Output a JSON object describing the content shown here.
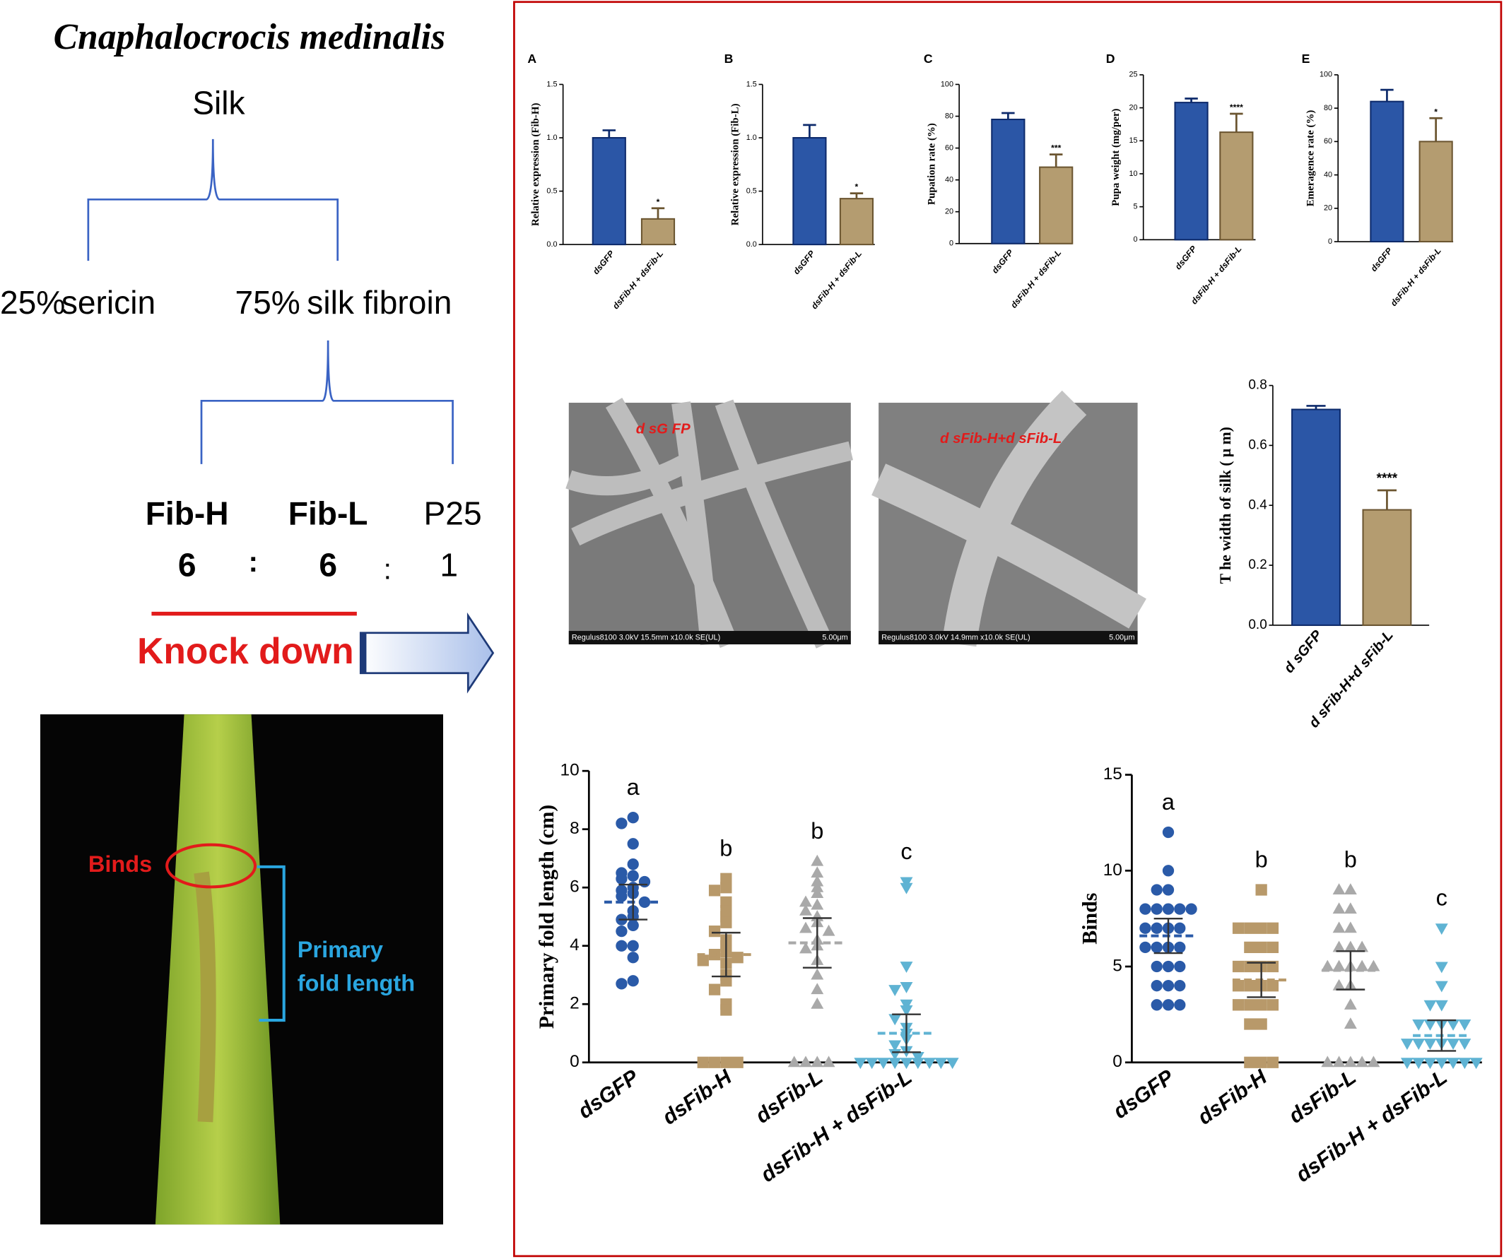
{
  "diagram": {
    "title": "Cnaphalocrocis medinalis",
    "root": "Silk",
    "sericin_percent": "25%",
    "sericin": "sericin",
    "fibroin_percent": "75%",
    "fibroin": "silk fibroin",
    "components": [
      "Fib-H",
      "Fib-L",
      "P25"
    ],
    "ratio": [
      "6",
      ":",
      "6",
      ":",
      "1"
    ],
    "action": "Knock down"
  },
  "photo": {
    "binds": "Binds",
    "fold_length": [
      "Primary",
      "fold length"
    ]
  },
  "micrographs": [
    {
      "label": "d sG FP",
      "caption": "Regulus8100 3.0kV 15.5mm x10.0k SE(UL)",
      "scale": "5.00μm"
    },
    {
      "label": "d sFib-H+d sFib-L",
      "caption": "Regulus8100 3.0kV 14.9mm x10.0k SE(UL)",
      "scale": "5.00μm"
    }
  ],
  "chart_data": [
    {
      "type": "bar",
      "panel": "A",
      "ylabel": "Relative expression (Fib-H)",
      "categories": [
        "dsGFP",
        "dsFib-H + dsFib-L"
      ],
      "values": [
        1.0,
        0.24
      ],
      "errors": [
        0.07,
        0.1
      ],
      "colors": [
        "#2b56a6",
        "#b49c70"
      ],
      "significance": "*",
      "ylim": [
        0,
        1.5
      ],
      "yticks": [
        {
          "value": 0,
          "label": "0.0"
        },
        0.5,
        {
          "value": 1,
          "label": "1.0"
        },
        1.5
      ]
    },
    {
      "type": "bar",
      "panel": "B",
      "ylabel": "Relative expression (Fib-L)",
      "categories": [
        "dsGFP",
        "dsFib-H + dsFib-L"
      ],
      "values": [
        1.0,
        0.43
      ],
      "errors": [
        0.12,
        0.05
      ],
      "colors": [
        "#2b56a6",
        "#b49c70"
      ],
      "significance": "*",
      "ylim": [
        0,
        1.5
      ],
      "yticks": [
        {
          "value": 0,
          "label": "0.0"
        },
        0.5,
        {
          "value": 1,
          "label": "1.0"
        },
        1.5
      ]
    },
    {
      "type": "bar",
      "panel": "C",
      "ylabel": "Pupation rate (%)",
      "categories": [
        "dsGFP",
        "dsFib-H + dsFib-L"
      ],
      "values": [
        78,
        48
      ],
      "errors": [
        4,
        8
      ],
      "colors": [
        "#2b56a6",
        "#b49c70"
      ],
      "significance": "***",
      "ylim": [
        0,
        100
      ],
      "yticks": [
        0,
        20,
        40,
        60,
        80,
        100
      ]
    },
    {
      "type": "bar",
      "panel": "D",
      "ylabel": "Pupa weight (mg/per)",
      "categories": [
        "dsGFP",
        "dsFib-H + dsFib-L"
      ],
      "values": [
        20.8,
        16.3
      ],
      "errors": [
        0.6,
        2.8
      ],
      "colors": [
        "#2b56a6",
        "#b49c70"
      ],
      "significance": "****",
      "ylim": [
        0,
        25
      ],
      "yticks": [
        0,
        5,
        10,
        15,
        20,
        25
      ]
    },
    {
      "type": "bar",
      "panel": "E",
      "ylabel": "Emeragence rate (%)",
      "categories": [
        "dsGFP",
        "dsFib-H + dsFib-L"
      ],
      "values": [
        84,
        60
      ],
      "errors": [
        7,
        14
      ],
      "colors": [
        "#2b56a6",
        "#b49c70"
      ],
      "significance": "*",
      "ylim": [
        0,
        100
      ],
      "yticks": [
        0,
        20,
        40,
        60,
        80,
        100
      ]
    },
    {
      "type": "bar",
      "ylabel": "T he width of silk ( μ m)",
      "categories": [
        "d sGFP",
        "d sFib-H+d sFib-L"
      ],
      "values": [
        0.72,
        0.385
      ],
      "errors": [
        0.012,
        0.065
      ],
      "colors": [
        "#2b56a6",
        "#b49c70"
      ],
      "significance": "****",
      "ylim": [
        0,
        0.8
      ],
      "yticks": [
        {
          "value": 0,
          "label": "0.0"
        },
        0.2,
        0.4,
        0.6,
        0.8
      ]
    },
    {
      "type": "scatter",
      "ylabel": "Primary fold length (cm)",
      "categories": [
        "dsGFP",
        "dsFib-H",
        "dsFib-L",
        "dsFib-H + dsFib-L"
      ],
      "colors": [
        "#2a5aa8",
        "#b8996a",
        "#a9a9a9",
        "#5fb3d3"
      ],
      "markers": [
        "circle",
        "square",
        "triangle-up",
        "triangle-down"
      ],
      "letters": [
        "a",
        "b",
        "b",
        "c"
      ],
      "points": [
        [
          8.4,
          8.2,
          7.5,
          6.8,
          6.5,
          6.4,
          6.3,
          6.2,
          6.0,
          5.9,
          5.8,
          5.7,
          5.5,
          5.2,
          5.0,
          4.9,
          4.7,
          4.5,
          4.0,
          4.0,
          3.6,
          2.8,
          2.7
        ],
        [
          6.3,
          6.0,
          5.9,
          5.5,
          5.2,
          5.0,
          4.8,
          4.5,
          4.2,
          4.0,
          3.8,
          3.7,
          3.6,
          3.5,
          3.4,
          3.0,
          2.8,
          2.5,
          2.0,
          1.8,
          0,
          0,
          0,
          0
        ],
        [
          6.9,
          6.5,
          6.2,
          6.0,
          5.8,
          5.5,
          5.4,
          5.2,
          5.0,
          4.8,
          4.6,
          4.5,
          4.2,
          4.0,
          3.9,
          3.5,
          3.0,
          2.5,
          2.0,
          0,
          0,
          0,
          0
        ],
        [
          6.2,
          6.0,
          3.3,
          2.6,
          2.5,
          2.0,
          1.8,
          1.5,
          1.2,
          1.0,
          0.8,
          0.6,
          0.4,
          0.3,
          0.2,
          0,
          0,
          0,
          0,
          0,
          0,
          0,
          0,
          0
        ]
      ],
      "means": [
        5.5,
        3.7,
        4.1,
        1.0
      ],
      "errors": [
        0.6,
        0.75,
        0.85,
        0.65
      ],
      "ylim": [
        0,
        10
      ],
      "yticks": [
        0,
        2,
        4,
        6,
        8,
        10
      ]
    },
    {
      "type": "scatter",
      "ylabel": "Binds",
      "categories": [
        "dsGFP",
        "dsFib-H",
        "dsFib-L",
        "dsFib-H + dsFib-L"
      ],
      "colors": [
        "#2a5aa8",
        "#b8996a",
        "#a9a9a9",
        "#5fb3d3"
      ],
      "markers": [
        "circle",
        "square",
        "triangle-up",
        "triangle-down"
      ],
      "letters": [
        "a",
        "b",
        "b",
        "c"
      ],
      "points": [
        [
          12,
          10,
          9,
          9,
          8,
          8,
          8,
          8,
          8,
          7,
          7,
          7,
          7,
          6,
          6,
          6,
          6,
          5,
          5,
          5,
          4,
          4,
          4,
          3,
          3,
          3
        ],
        [
          9,
          7,
          7,
          7,
          7,
          6,
          6,
          6,
          5,
          5,
          5,
          5,
          4,
          4,
          4,
          4,
          3,
          3,
          3,
          3,
          2,
          2,
          0,
          0,
          0
        ],
        [
          9,
          9,
          8,
          8,
          7,
          7,
          6,
          6,
          6,
          5,
          5,
          5,
          5,
          5,
          4,
          4,
          3,
          2,
          0,
          0,
          0,
          0,
          0
        ],
        [
          7,
          5,
          4,
          3,
          3,
          2,
          2,
          2,
          2,
          2,
          1,
          1,
          1,
          1,
          1,
          1,
          0,
          0,
          0,
          0,
          0,
          0,
          0
        ]
      ],
      "means": [
        6.6,
        4.3,
        4.8,
        1.4
      ],
      "errors": [
        0.9,
        0.9,
        1.0,
        0.8
      ],
      "ylim": [
        0,
        15
      ],
      "yticks": [
        0,
        5,
        10,
        15
      ]
    }
  ]
}
